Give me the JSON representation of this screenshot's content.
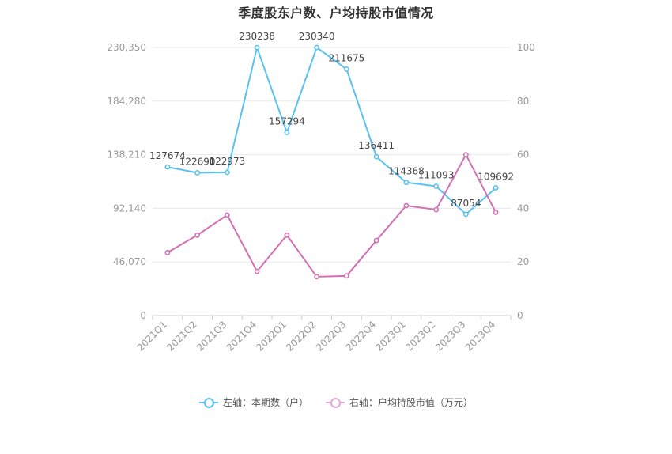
{
  "chart_data": {
    "type": "line",
    "title": "季度股东户数、户均持股市值情况",
    "categories": [
      "2021Q1",
      "2021Q2",
      "2021Q3",
      "2021Q4",
      "2022Q1",
      "2022Q2",
      "2022Q3",
      "2022Q4",
      "2023Q1",
      "2023Q2",
      "2023Q3",
      "2023Q4"
    ],
    "left_axis": {
      "ticks": [
        "0",
        "46,070",
        "92,140",
        "138,210",
        "184,280",
        "230,350"
      ],
      "ylim": [
        0,
        230350
      ]
    },
    "right_axis": {
      "ticks": [
        "0",
        "20",
        "40",
        "60",
        "80",
        "100"
      ],
      "ylim": [
        0,
        100
      ]
    },
    "series": [
      {
        "name": "左轴：本期数（户）",
        "axis": "left",
        "color": "#5bc2f0",
        "values": [
          127674,
          122690,
          122973,
          230238,
          157294,
          230340,
          211675,
          136411,
          114368,
          111093,
          87054,
          109692
        ],
        "labels": [
          "127674",
          "122690",
          "122973",
          "230238",
          "157294",
          "230340",
          "211675",
          "136411",
          "114368",
          "111093",
          "87054",
          "109692"
        ]
      },
      {
        "name": "右轴：户均持股市值（万元）",
        "axis": "right",
        "color": "#d46fb5",
        "values": [
          23.5,
          30.0,
          37.5,
          16.5,
          30.0,
          14.5,
          14.8,
          28.0,
          41.0,
          39.5,
          60.0,
          38.5
        ]
      }
    ],
    "grid": true,
    "legend_position": "bottom"
  }
}
